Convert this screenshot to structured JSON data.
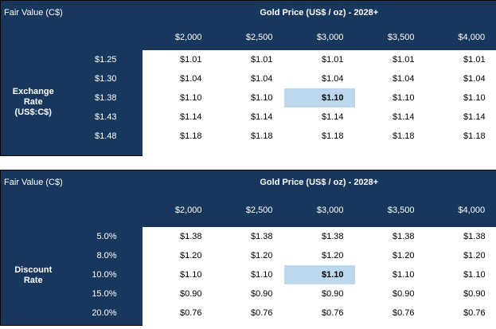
{
  "colors": {
    "navy_header": "#17375D",
    "highlight_blue": "#BDD7EE",
    "header_text": "#FFFFFF",
    "data_text": "#000000"
  },
  "tables": [
    {
      "left_title": "Fair Value (C$)",
      "group_title": "Gold Price (US$ / oz) - 2028+",
      "col_headers": [
        "$2,000",
        "$2,500",
        "$3,000",
        "$3,500",
        "$4,000"
      ],
      "row_label": "Exchange\nRate\n(US$:C$)",
      "rows": [
        {
          "header": "$1.25",
          "values": [
            "$1.01",
            "$1.01",
            "$1.01",
            "$1.01",
            "$1.01"
          ]
        },
        {
          "header": "$1.30",
          "values": [
            "$1.04",
            "$1.04",
            "$1.04",
            "$1.04",
            "$1.04"
          ]
        },
        {
          "header": "$1.38",
          "values": [
            "$1.10",
            "$1.10",
            "$1.10",
            "$1.10",
            "$1.10"
          ]
        },
        {
          "header": "$1.43",
          "values": [
            "$1.14",
            "$1.14",
            "$1.14",
            "$1.14",
            "$1.14"
          ]
        },
        {
          "header": "$1.48",
          "values": [
            "$1.18",
            "$1.18",
            "$1.18",
            "$1.18",
            "$1.18"
          ]
        }
      ],
      "highlight": {
        "row_index": 2,
        "col_index": 2,
        "value": "$1.10"
      }
    },
    {
      "left_title": "Fair Value (C$)",
      "group_title": "Gold Price (US$ / oz) - 2028+",
      "col_headers": [
        "$2,000",
        "$2,500",
        "$3,000",
        "$3,500",
        "$4,000"
      ],
      "row_label": "Discount\nRate",
      "rows": [
        {
          "header": "5.0%",
          "values": [
            "$1.38",
            "$1.38",
            "$1.38",
            "$1.38",
            "$1.38"
          ]
        },
        {
          "header": "8.0%",
          "values": [
            "$1.20",
            "$1.20",
            "$1.20",
            "$1.20",
            "$1.20"
          ]
        },
        {
          "header": "10.0%",
          "values": [
            "$1.10",
            "$1.10",
            "$1.10",
            "$1.10",
            "$1.10"
          ]
        },
        {
          "header": "15.0%",
          "values": [
            "$0.90",
            "$0.90",
            "$0.90",
            "$0.90",
            "$0.90"
          ]
        },
        {
          "header": "20.0%",
          "values": [
            "$0.76",
            "$0.76",
            "$0.76",
            "$0.76",
            "$0.76"
          ]
        }
      ],
      "highlight": {
        "row_index": 2,
        "col_index": 2,
        "value": "$1.10"
      }
    }
  ]
}
